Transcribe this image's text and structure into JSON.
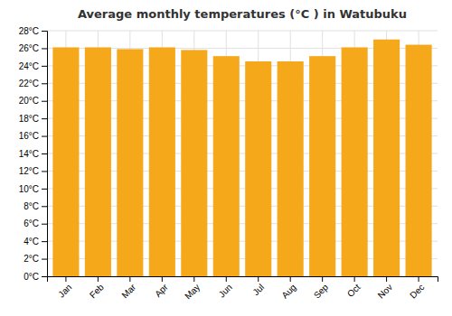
{
  "chart_data": {
    "type": "bar",
    "title": "Average monthly temperatures (°C ) in Watubuku",
    "categories": [
      "Jan",
      "Feb",
      "Mar",
      "Apr",
      "May",
      "Jun",
      "Jul",
      "Aug",
      "Sep",
      "Oct",
      "Nov",
      "Dec"
    ],
    "values": [
      26.1,
      26.1,
      25.9,
      26.1,
      25.8,
      25.1,
      24.5,
      24.5,
      25.1,
      26.1,
      27.0,
      26.4
    ],
    "color": "#F5A81A",
    "ylim": [
      0,
      28
    ],
    "yticks": [
      {
        "value": 0,
        "label": "0°C"
      },
      {
        "value": 2,
        "label": "2°C"
      },
      {
        "value": 4,
        "label": "4°C"
      },
      {
        "value": 6,
        "label": "6°C"
      },
      {
        "value": 8,
        "label": "8°C"
      },
      {
        "value": 10,
        "label": "10°C"
      },
      {
        "value": 12,
        "label": "12°C"
      },
      {
        "value": 14,
        "label": "14°C"
      },
      {
        "value": 16,
        "label": "16°C"
      },
      {
        "value": 18,
        "label": "18°C"
      },
      {
        "value": 20,
        "label": "20°C"
      },
      {
        "value": 22,
        "label": "22°C"
      },
      {
        "value": 24,
        "label": "24°C"
      },
      {
        "value": 26,
        "label": "26°C"
      },
      {
        "value": 28,
        "label": "28°C"
      }
    ],
    "grid": true
  }
}
